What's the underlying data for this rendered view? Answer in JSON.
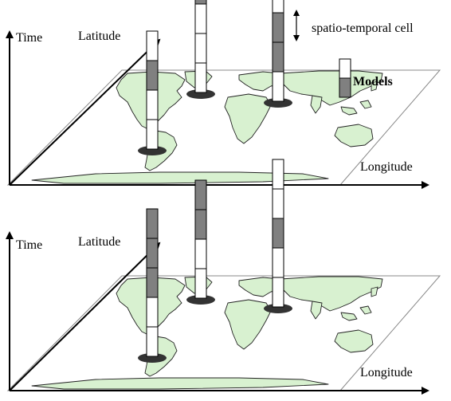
{
  "panels": [
    {
      "id": "top",
      "axis_labels": {
        "time": "Time",
        "latitude": "Latitude",
        "longitude": "Longitude"
      },
      "columns": [
        {
          "segments": [
            "white",
            "gray",
            "white",
            "white"
          ]
        },
        {
          "segments": [
            "gray",
            "white",
            "white",
            "white"
          ]
        },
        {
          "segments": [
            "white",
            "gray",
            "gray",
            "white"
          ]
        }
      ]
    },
    {
      "id": "bottom",
      "axis_labels": {
        "time": "Time",
        "latitude": "Latitude",
        "longitude": "Longitude"
      },
      "columns": [
        {
          "segments": [
            "gray",
            "gray",
            "gray",
            "white",
            "white"
          ]
        },
        {
          "segments": [
            "gray",
            "gray",
            "white",
            "white"
          ]
        },
        {
          "segments": [
            "white",
            "white",
            "gray",
            "white",
            "white"
          ]
        }
      ]
    }
  ],
  "legend": {
    "cell_label": "spatio-temporal cell",
    "models_label": "Models",
    "models_segments": [
      "white",
      "gray"
    ]
  },
  "colors": {
    "cell_gray": "#808080",
    "cell_white": "#ffffff",
    "land": "#d8f1d0",
    "shadow": "#333333"
  }
}
